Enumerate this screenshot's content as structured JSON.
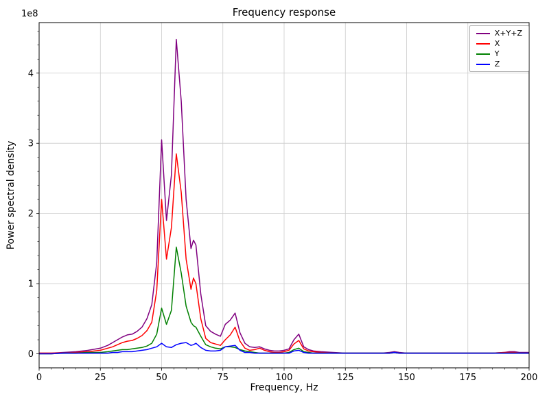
{
  "chart_data": {
    "type": "line",
    "title": "Frequency response",
    "xlabel": "Frequency, Hz",
    "ylabel": "Power spectral density",
    "offset_label": "1e8",
    "y_values_unit": "1e8",
    "xlim": [
      0,
      200
    ],
    "ylim": [
      -0.2,
      4.72
    ],
    "xticks": [
      0,
      25,
      50,
      75,
      100,
      125,
      150,
      175,
      200
    ],
    "xtick_labels": [
      "0",
      "25",
      "50",
      "75",
      "100",
      "125",
      "150",
      "175",
      "200"
    ],
    "yticks": [
      0,
      1,
      2,
      3,
      4
    ],
    "ytick_labels": [
      "0",
      "1",
      "2",
      "3",
      "4"
    ],
    "x_major_step": 25,
    "x_minor_step": 5,
    "y_minor_step": 0.2,
    "grid": true,
    "grid_color": "#cccccc",
    "legend": {
      "position": "upper right",
      "entries": [
        "X+Y+Z",
        "X",
        "Y",
        "Z"
      ]
    },
    "x": [
      0,
      5,
      10,
      15,
      20,
      25,
      28,
      30,
      32,
      34,
      36,
      38,
      40,
      42,
      44,
      46,
      48,
      50,
      52,
      54,
      56,
      58,
      60,
      62,
      63,
      64,
      66,
      68,
      70,
      72,
      74,
      76,
      78,
      80,
      82,
      84,
      86,
      88,
      90,
      92,
      94,
      96,
      98,
      100,
      102,
      104,
      106,
      108,
      110,
      112,
      115,
      120,
      125,
      130,
      135,
      140,
      143,
      145,
      147,
      150,
      155,
      160,
      165,
      170,
      175,
      180,
      185,
      190,
      192,
      194,
      196,
      200
    ],
    "series": [
      {
        "name": "X+Y+Z",
        "color": "#800080",
        "values": [
          0.01,
          0.01,
          0.02,
          0.03,
          0.05,
          0.08,
          0.12,
          0.16,
          0.2,
          0.24,
          0.27,
          0.28,
          0.32,
          0.38,
          0.5,
          0.7,
          1.3,
          3.05,
          1.9,
          2.55,
          4.48,
          3.6,
          2.2,
          1.5,
          1.62,
          1.55,
          0.85,
          0.4,
          0.32,
          0.28,
          0.25,
          0.42,
          0.48,
          0.58,
          0.3,
          0.15,
          0.1,
          0.09,
          0.1,
          0.07,
          0.05,
          0.04,
          0.04,
          0.05,
          0.07,
          0.2,
          0.28,
          0.1,
          0.06,
          0.04,
          0.03,
          0.02,
          0.01,
          0.01,
          0.01,
          0.01,
          0.02,
          0.03,
          0.02,
          0.01,
          0.01,
          0.01,
          0.01,
          0.01,
          0.01,
          0.01,
          0.01,
          0.02,
          0.03,
          0.03,
          0.02,
          0.02
        ]
      },
      {
        "name": "X",
        "color": "#ff0000",
        "values": [
          0.01,
          0.01,
          0.01,
          0.02,
          0.03,
          0.05,
          0.08,
          0.1,
          0.13,
          0.16,
          0.18,
          0.19,
          0.22,
          0.26,
          0.33,
          0.45,
          0.9,
          2.2,
          1.35,
          1.8,
          2.85,
          2.3,
          1.35,
          0.92,
          1.08,
          1.0,
          0.5,
          0.22,
          0.16,
          0.14,
          0.12,
          0.2,
          0.27,
          0.38,
          0.18,
          0.08,
          0.05,
          0.06,
          0.08,
          0.05,
          0.03,
          0.02,
          0.02,
          0.03,
          0.05,
          0.14,
          0.19,
          0.07,
          0.04,
          0.03,
          0.02,
          0.01,
          0.01,
          0.01,
          0.01,
          0.01,
          0.01,
          0.02,
          0.01,
          0.01,
          0.01,
          0.01,
          0.01,
          0.01,
          0.01,
          0.01,
          0.01,
          0.02,
          0.02,
          0.02,
          0.01,
          0.01
        ]
      },
      {
        "name": "Y",
        "color": "#008000",
        "values": [
          0.0,
          0.0,
          0.01,
          0.01,
          0.02,
          0.02,
          0.03,
          0.04,
          0.05,
          0.06,
          0.06,
          0.07,
          0.08,
          0.09,
          0.11,
          0.15,
          0.28,
          0.65,
          0.42,
          0.62,
          1.52,
          1.15,
          0.68,
          0.45,
          0.4,
          0.38,
          0.25,
          0.13,
          0.1,
          0.08,
          0.07,
          0.1,
          0.1,
          0.09,
          0.06,
          0.04,
          0.03,
          0.02,
          0.01,
          0.01,
          0.01,
          0.01,
          0.01,
          0.01,
          0.02,
          0.06,
          0.08,
          0.03,
          0.02,
          0.01,
          0.01,
          0.01,
          0.01,
          0.01,
          0.01,
          0.01,
          0.01,
          0.02,
          0.01,
          0.01,
          0.01,
          0.01,
          0.01,
          0.01,
          0.01,
          0.01,
          0.01,
          0.01,
          0.01,
          0.01,
          0.01,
          0.01
        ]
      },
      {
        "name": "Z",
        "color": "#0000ff",
        "values": [
          0.0,
          0.0,
          0.01,
          0.01,
          0.01,
          0.01,
          0.01,
          0.02,
          0.02,
          0.03,
          0.03,
          0.03,
          0.04,
          0.05,
          0.06,
          0.08,
          0.1,
          0.15,
          0.1,
          0.09,
          0.13,
          0.15,
          0.16,
          0.12,
          0.13,
          0.15,
          0.09,
          0.05,
          0.04,
          0.04,
          0.05,
          0.1,
          0.11,
          0.12,
          0.05,
          0.02,
          0.02,
          0.01,
          0.01,
          0.01,
          0.01,
          0.01,
          0.01,
          0.01,
          0.01,
          0.04,
          0.05,
          0.02,
          0.01,
          0.01,
          0.01,
          0.01,
          0.01,
          0.01,
          0.01,
          0.01,
          0.01,
          0.02,
          0.01,
          0.01,
          0.01,
          0.01,
          0.01,
          0.01,
          0.01,
          0.01,
          0.01,
          0.01,
          0.01,
          0.01,
          0.01,
          0.01
        ]
      }
    ]
  }
}
